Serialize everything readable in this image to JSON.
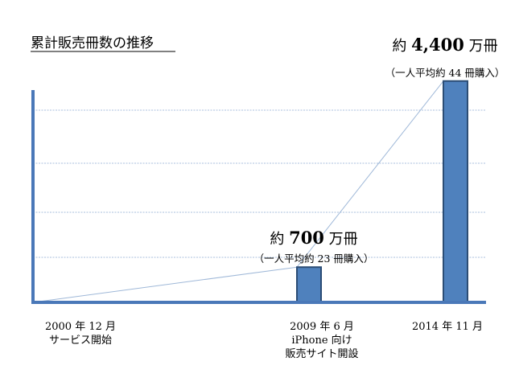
{
  "chart_data": {
    "type": "bar",
    "title": "累計販売冊数の推移",
    "xlabel": "",
    "ylabel": "",
    "categories": [
      {
        "lines": [
          "2000 年 12 月",
          "サービス開始"
        ]
      },
      {
        "lines": [
          "2009 年 6 月",
          "iPhone 向け",
          "販売サイト開設"
        ]
      },
      {
        "lines": [
          "2014 年 11 月"
        ]
      }
    ],
    "values": [
      0,
      700,
      4400
    ],
    "unit": "万冊",
    "ylim": [
      0,
      4700
    ],
    "grid": true,
    "colors": {
      "bar": "#4f81bd",
      "bar_border": "#2c4d75",
      "axis": "#4a78b8",
      "grid": "#a8bfdc",
      "trend": "#9fb8d8"
    },
    "annotations": [
      {
        "prefix": "約",
        "value": "700",
        "unit": "万冊",
        "sub": "（一人平均約 23 冊購入）"
      },
      {
        "prefix": "約",
        "value": "4,400",
        "unit": "万冊",
        "sub": "（一人平均約 44 冊購入）"
      }
    ]
  }
}
